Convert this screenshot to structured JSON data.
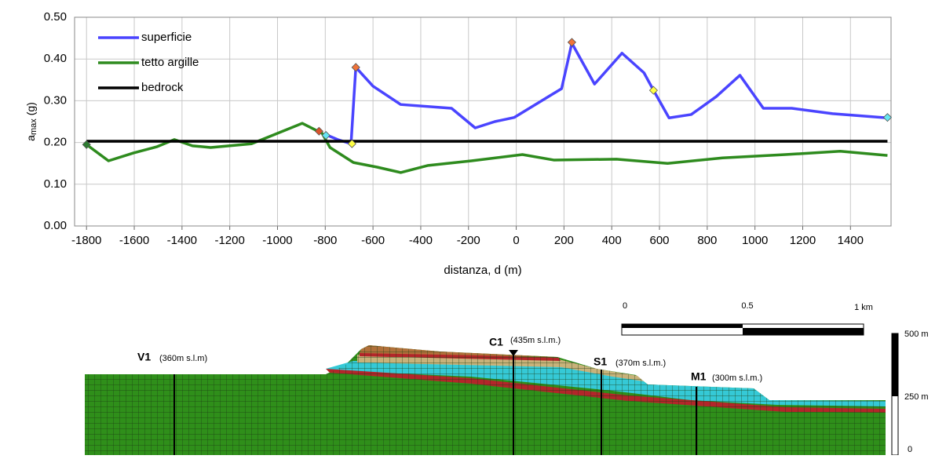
{
  "chart_data": {
    "type": "line",
    "ylabel": {
      "base": "a",
      "sub": "max",
      "unit": "(g)"
    },
    "xlabel": "distanza, d (m)",
    "xlim": [
      -1850,
      1570
    ],
    "ylim": [
      0,
      0.5
    ],
    "xticks": [
      -1800,
      -1600,
      -1400,
      -1200,
      -1000,
      -800,
      -600,
      -400,
      -200,
      0,
      200,
      400,
      600,
      800,
      1000,
      1200,
      1400
    ],
    "yticks": [
      {
        "value": 0,
        "label": "0.00"
      },
      {
        "value": 0.1,
        "label": "0.10"
      },
      {
        "value": 0.2,
        "label": "0.20"
      },
      {
        "value": 0.3,
        "label": "0.30"
      },
      {
        "value": 0.4,
        "label": "0.40"
      },
      {
        "value": 0.5,
        "label": "0.50"
      }
    ],
    "grid": true,
    "legend": "upper left",
    "series": [
      {
        "name": "superficie",
        "color": "#4a44ff",
        "x": [
          -794,
          -748,
          -692,
          -672,
          -600,
          -484,
          -271,
          -172,
          -90,
          -8,
          141,
          190,
          233,
          328,
          443,
          535,
          575,
          640,
          733,
          838,
          937,
          1035,
          1154,
          1325,
          1555
        ],
        "values": [
          0.218,
          0.207,
          0.197,
          0.38,
          0.335,
          0.291,
          0.282,
          0.235,
          0.25,
          0.26,
          0.312,
          0.329,
          0.438,
          0.34,
          0.414,
          0.367,
          0.325,
          0.259,
          0.267,
          0.31,
          0.361,
          0.282,
          0.282,
          0.269,
          0.259
        ]
      },
      {
        "name": "tetto argille",
        "color": "#2e8b1e",
        "x": [
          -1800,
          -1708,
          -1603,
          -1504,
          -1432,
          -1356,
          -1280,
          -1109,
          -1017,
          -896,
          -813,
          -780,
          -682,
          -583,
          -484,
          -369,
          -188,
          26,
          157,
          420,
          634,
          864,
          1127,
          1357,
          1555
        ],
        "values": [
          0.195,
          0.156,
          0.175,
          0.19,
          0.207,
          0.192,
          0.188,
          0.197,
          0.218,
          0.246,
          0.222,
          0.188,
          0.152,
          0.141,
          0.128,
          0.145,
          0.156,
          0.171,
          0.158,
          0.16,
          0.15,
          0.163,
          0.171,
          0.179,
          0.169
        ]
      },
      {
        "name": "bedrock",
        "color": "#000000",
        "x": [
          -1800,
          1555
        ],
        "values": [
          0.203,
          0.203
        ]
      }
    ],
    "markers": [
      {
        "x": -1800,
        "y": 0.195,
        "color": "#2e7d32"
      },
      {
        "x": -826,
        "y": 0.227,
        "color": "#d9542b"
      },
      {
        "x": -797,
        "y": 0.217,
        "color": "#66e6f2"
      },
      {
        "x": -688,
        "y": 0.197,
        "color": "#ffff44"
      },
      {
        "x": -672,
        "y": 0.38,
        "color": "#f0743a"
      },
      {
        "x": 233,
        "y": 0.44,
        "color": "#f0743a"
      },
      {
        "x": 575,
        "y": 0.325,
        "color": "#ffff44"
      },
      {
        "x": 1555,
        "y": 0.26,
        "color": "#66e6f2"
      }
    ]
  },
  "section": {
    "wells": [
      {
        "name": "V1",
        "elevation": "(360m s.l.m)"
      },
      {
        "name": "C1",
        "elevation": "(435m s.l.m.)"
      },
      {
        "name": "S1",
        "elevation": "(370m s.l.m.)"
      },
      {
        "name": "M1",
        "elevation": "(300m s.l.m.)"
      }
    ],
    "scale_bar": [
      "0",
      "0.5",
      "1 km"
    ],
    "vertical_scale": [
      "500 m",
      "250 m",
      "0"
    ]
  }
}
